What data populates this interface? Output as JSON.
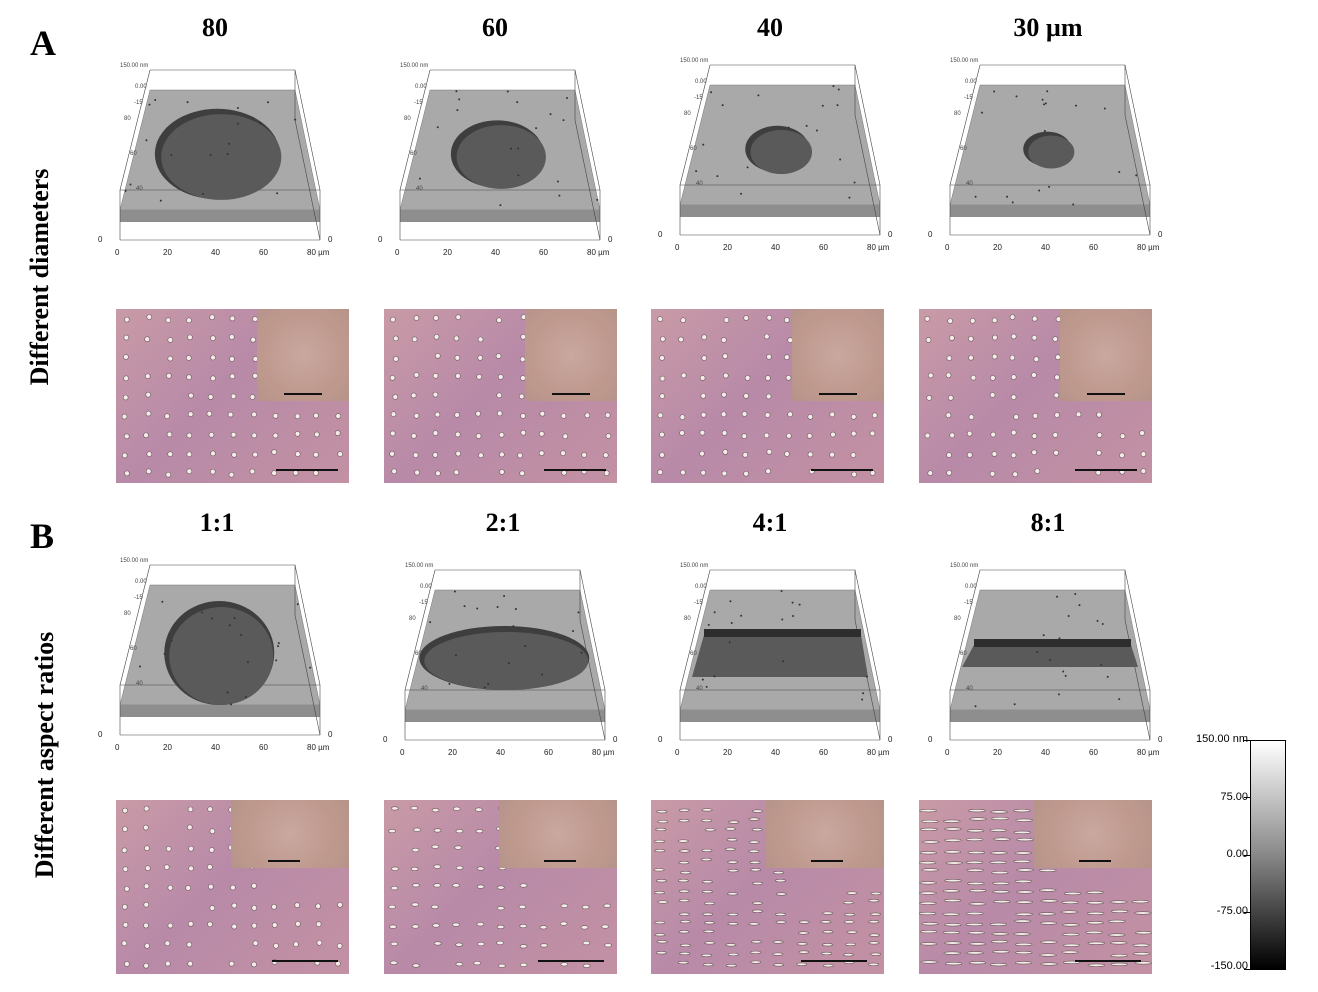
{
  "panels": {
    "A": "A",
    "B": "B"
  },
  "row_labels": {
    "diameters": "Different diameters",
    "aspect": "Different aspect ratios"
  },
  "diameter_titles": [
    "80",
    "60",
    "40",
    "30 µm"
  ],
  "aspect_titles": [
    "1:1",
    "2:1",
    "4:1",
    "8:1"
  ],
  "afm_axis": {
    "z_max": "150.00 nm",
    "z_zero": "0.00",
    "z_minus": "-15",
    "x_ticks": [
      "0",
      "20",
      "40",
      "60",
      "80 µm"
    ],
    "y_ticks": [
      "0",
      "20",
      "40",
      "60",
      "80"
    ],
    "y_labels_inner": [
      "40",
      "60",
      "80"
    ]
  },
  "colorbar": {
    "labels": [
      "150.00 nm",
      "75.00",
      "0.00",
      "-75.00",
      "-150.00"
    ],
    "colors": {
      "top": "#ffffff",
      "bottom": "#000000"
    }
  },
  "colors": {
    "micro_bg": "#c195a6",
    "afm_surface": "#a9a9a9",
    "afm_pit": "#5a5a5a"
  },
  "features": {
    "diameters": [
      80,
      60,
      40,
      30
    ],
    "aspect_ratios": [
      1,
      2,
      4,
      8
    ]
  }
}
